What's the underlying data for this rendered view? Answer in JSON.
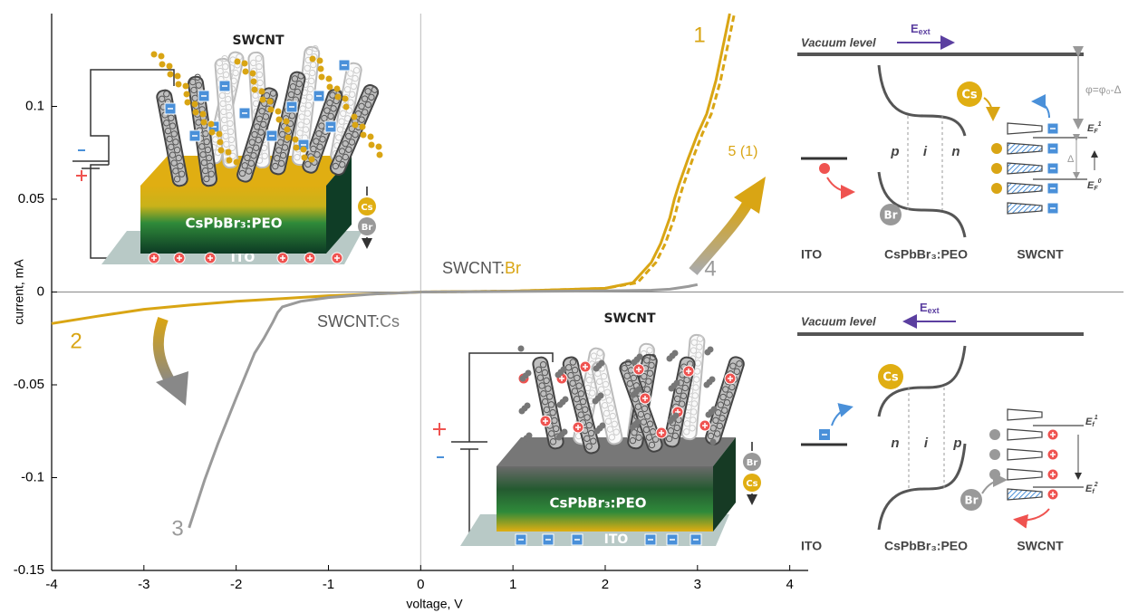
{
  "chart_data": {
    "type": "line",
    "x_label": "voltage, V",
    "y_label": "current, mA",
    "xlim": [
      -4,
      4.2
    ],
    "ylim": [
      -0.15,
      0.15
    ],
    "xticks": [
      -4,
      -3,
      -2,
      -1,
      0,
      1,
      2,
      3,
      4
    ],
    "yticks": [
      -0.15,
      -0.1,
      -0.05,
      0,
      0.05,
      0.1
    ],
    "series": [
      {
        "name": "1",
        "color": "#d9a514",
        "dashed": false,
        "x": [
          0,
          1,
          2,
          2.3,
          2.5,
          2.6,
          2.7,
          2.75,
          2.8,
          2.9,
          3.0,
          3.1,
          3.2,
          3.3,
          3.35
        ],
        "values": [
          0,
          0.0005,
          0.002,
          0.005,
          0.016,
          0.026,
          0.04,
          0.05,
          0.058,
          0.072,
          0.085,
          0.096,
          0.114,
          0.138,
          0.15
        ]
      },
      {
        "name": "5 (1)",
        "color": "#d9a514",
        "dashed": true,
        "x": [
          0,
          1,
          2,
          2.35,
          2.55,
          2.65,
          2.75,
          2.8,
          2.85,
          2.95,
          3.05,
          3.15,
          3.25,
          3.35,
          3.4
        ],
        "values": [
          0,
          0.0005,
          0.002,
          0.005,
          0.016,
          0.026,
          0.04,
          0.05,
          0.058,
          0.072,
          0.085,
          0.096,
          0.114,
          0.138,
          0.15
        ]
      },
      {
        "name": "4",
        "color": "#9a9a9a",
        "dashed": false,
        "x": [
          0,
          1,
          2,
          2.5,
          2.7,
          2.9,
          3.0
        ],
        "values": [
          0,
          0.0003,
          0.0006,
          0.001,
          0.0015,
          0.003,
          0.004
        ]
      },
      {
        "name": "2",
        "color": "#d9a514",
        "dashed": false,
        "x": [
          -4,
          -3.5,
          -3,
          -2.5,
          -2,
          -1.5,
          -1,
          -0.5,
          0
        ],
        "values": [
          -0.017,
          -0.013,
          -0.0093,
          -0.007,
          -0.005,
          -0.0035,
          -0.002,
          -0.001,
          0
        ]
      },
      {
        "name": "3",
        "color": "#9a9a9a",
        "dashed": false,
        "x": [
          0,
          -0.5,
          -1,
          -1.3,
          -1.5,
          -1.55,
          -1.6,
          -1.7,
          -1.8,
          -2.0,
          -2.2,
          -2.34,
          -2.51
        ],
        "values": [
          0,
          -0.001,
          -0.003,
          -0.005,
          -0.008,
          -0.011,
          -0.016,
          -0.025,
          -0.033,
          -0.057,
          -0.082,
          -0.101,
          -0.127
        ]
      }
    ],
    "annotations": [
      {
        "parts": [
          "SWCNT:",
          "Br"
        ]
      },
      {
        "parts": [
          "SWCNT:",
          "Cs"
        ]
      }
    ]
  },
  "diagram_top": {
    "title": "SWCNT",
    "layer": "CsPbBr₃:PEO",
    "substrate": "ITO",
    "ion_a": "Cs",
    "ion_b": "Br"
  },
  "diagram_bottom": {
    "title": "SWCNT",
    "layer": "CsPbBr₃:PEO",
    "substrate": "ITO",
    "ion_a": "Br",
    "ion_b": "Cs"
  },
  "band_top": {
    "vacuum": "Vacuum level",
    "field": [
      "E",
      "ext"
    ],
    "regions": [
      "p",
      "i",
      "n"
    ],
    "labels": [
      "ITO",
      "CsPbBr₃:PEO",
      "SWCNT"
    ],
    "ion_cs": "Cs",
    "ion_br": "Br",
    "phi": "φ=φ₀-Δ",
    "delta": "Δ",
    "level_upper": [
      "E",
      "F",
      "1"
    ],
    "level_lower": [
      "E",
      "F",
      "0"
    ]
  },
  "band_bottom": {
    "vacuum": "Vacuum level",
    "field": [
      "E",
      "ext"
    ],
    "regions": [
      "n",
      "i",
      "p"
    ],
    "labels": [
      "ITO",
      "CsPbBr₃:PEO",
      "SWCNT"
    ],
    "ion_cs": "Cs",
    "ion_br": "Br",
    "level_upper": [
      "E",
      "f",
      "1"
    ],
    "level_lower": [
      "E",
      "f",
      "2"
    ]
  }
}
